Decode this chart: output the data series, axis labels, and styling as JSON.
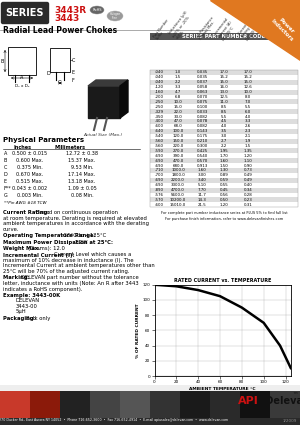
{
  "title_series": "SERIES",
  "title_part1": "3443R",
  "title_part2": "3443",
  "subtitle": "Radial Lead Power Chokes",
  "bg_color": "#ffffff",
  "table_header_bg": "#555555",
  "table_alt_row": "#dddddd",
  "orange_color": "#e07820",
  "red_color": "#cc1111",
  "dark_color": "#333333",
  "table_rows": [
    [
      "-040",
      "1.0",
      "0.035",
      "17.0",
      "17.0"
    ],
    [
      "-040",
      "1.5",
      "0.035",
      "15.2",
      "15.2"
    ],
    [
      "-040",
      "2.2",
      "0.037",
      "15.0",
      "15.0"
    ],
    [
      "-120",
      "3.3",
      "0.058",
      "16.0",
      "12.6"
    ],
    [
      "-160",
      "4.7",
      "0.063",
      "13.0",
      "10.0"
    ],
    [
      "-200",
      "6.8",
      "0.070",
      "12.5",
      "8.0"
    ],
    [
      "-250",
      "10.0",
      "0.075",
      "11.0",
      "7.0"
    ],
    [
      "-250",
      "15.0",
      "0.100",
      "8.5",
      "5.5"
    ],
    [
      "-329",
      "22.0",
      "0.033",
      "8.5",
      "6.0"
    ],
    [
      "-350",
      "33.0",
      "0.082",
      "5.5",
      "4.0"
    ],
    [
      "-400",
      "47.0",
      "0.078",
      "4.5",
      "3.3"
    ],
    [
      "-600",
      "68.0",
      "0.082",
      "4.0",
      "2.6"
    ],
    [
      "-640",
      "100.0",
      "0.143",
      "3.5",
      "2.3"
    ],
    [
      "-540",
      "120.0",
      "0.175",
      "3.0",
      "2.1"
    ],
    [
      "-560",
      "150.0",
      "0.210",
      "2.7",
      "1.9"
    ],
    [
      "-560",
      "220.0",
      "0.300",
      "2.2",
      "1.5"
    ],
    [
      "-590",
      "270.0",
      "0.425",
      "1.95",
      "1.35"
    ],
    [
      "-690",
      "390.0",
      "0.540",
      "1.70",
      "1.20"
    ],
    [
      "-690",
      "470.0",
      "0.570",
      "1.60",
      "1.10"
    ],
    [
      "-690",
      "680.0",
      "0.913",
      "1.50",
      "0.90"
    ],
    [
      "-710",
      "1000.0",
      "1.60",
      "1.30",
      "0.73"
    ],
    [
      "-700",
      "1800.0",
      "3.00",
      "0.89",
      "0.49"
    ],
    [
      "-690",
      "2200.0",
      "3.40",
      "0.59",
      "0.49"
    ],
    [
      "-690",
      "3300.0",
      "5.10",
      "0.55",
      "0.40"
    ],
    [
      "-890",
      "4700.0",
      "7.70",
      "0.45",
      "0.34"
    ],
    [
      "-576",
      "5600.0",
      "11.7",
      "0.56",
      "0.28"
    ],
    [
      "-570",
      "10200.0",
      "14.3",
      "0.50",
      "0.23"
    ],
    [
      "-600",
      "15010.0",
      "21.5",
      "1.20",
      "0.31"
    ]
  ],
  "phys_rows": [
    [
      "A",
      "0.500 ± 0.015",
      "12.72 ± 0.38"
    ],
    [
      "B",
      "0.600 Max.",
      "15.37 Max."
    ],
    [
      "C",
      "0.375 Min.",
      "9.53 Min."
    ],
    [
      "D",
      "0.670 Max.",
      "17.14 Max."
    ],
    [
      "E",
      "0.515 Max.",
      "13.18 Max."
    ],
    [
      "F**",
      "0.043 ± 0.002",
      "1.09 ± 0.05"
    ],
    [
      "G",
      "0.003 Min.",
      "0.08 Min."
    ]
  ],
  "phys_footnote": "**Pin AWG #18 TCW",
  "graph_x": [
    0,
    20,
    40,
    60,
    80,
    100,
    115,
    120,
    125
  ],
  "graph_y": [
    120,
    118,
    113,
    105,
    90,
    70,
    40,
    25,
    10
  ],
  "footer_address": "270 Ducker Rd., East Aurora NY 14052  •  Phone 716-652-3600  •  Fax 716-652-4914  •  E-mail apiusales@delevan.com  •  www.delevan.com",
  "footer_date": "1/2009"
}
